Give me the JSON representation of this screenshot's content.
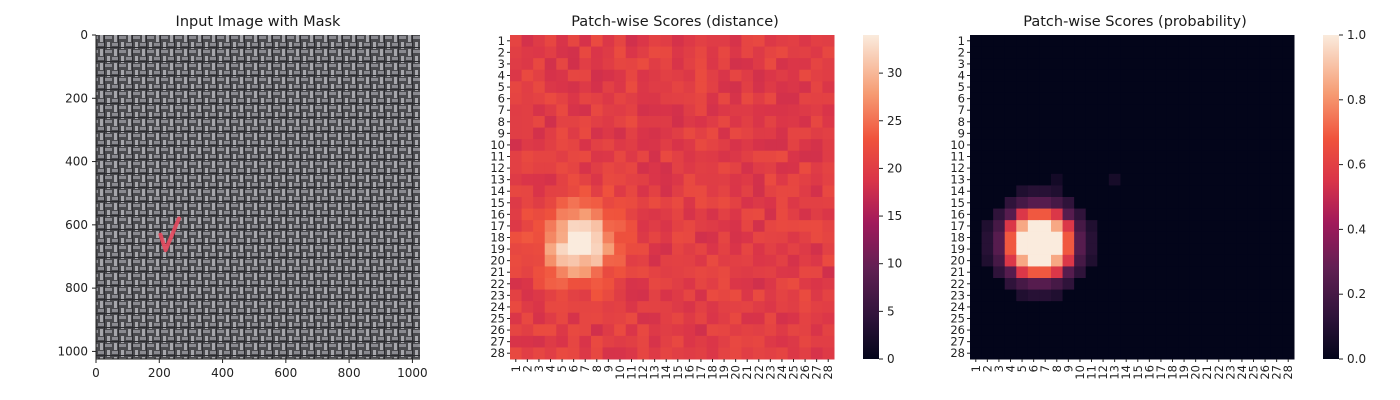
{
  "chart_data": [
    {
      "type": "image",
      "title": "Input Image with Mask",
      "xlim": [
        0,
        1024
      ],
      "ylim": [
        1024,
        0
      ],
      "x_ticks": [
        "0",
        "200",
        "400",
        "600",
        "800",
        "1000"
      ],
      "y_ticks": [
        "0",
        "200",
        "400",
        "600",
        "800",
        "1000"
      ],
      "mask_color": "#e84a5f",
      "mask_region": [
        [
          210,
          650
        ],
        [
          262,
          580
        ],
        [
          220,
          680
        ]
      ]
    },
    {
      "type": "heatmap",
      "title": "Patch-wise Scores (distance)",
      "rows": 28,
      "cols": 28,
      "row_labels": [
        "1",
        "2",
        "3",
        "4",
        "5",
        "6",
        "7",
        "8",
        "9",
        "10",
        "11",
        "12",
        "13",
        "14",
        "15",
        "16",
        "17",
        "18",
        "19",
        "20",
        "21",
        "22",
        "23",
        "24",
        "25",
        "26",
        "27",
        "28"
      ],
      "col_labels": [
        "1",
        "2",
        "3",
        "4",
        "5",
        "6",
        "7",
        "8",
        "9",
        "10",
        "11",
        "12",
        "13",
        "14",
        "15",
        "16",
        "17",
        "18",
        "19",
        "20",
        "21",
        "22",
        "23",
        "24",
        "25",
        "26",
        "27",
        "28"
      ],
      "colorbar": {
        "min": 0,
        "max": 34,
        "ticks": [
          "0",
          "5",
          "10",
          "15",
          "20",
          "25",
          "30"
        ]
      },
      "base": 20,
      "hotspot": {
        "row": 18.5,
        "col": 6.5,
        "peak": 34,
        "spread": 2.2
      }
    },
    {
      "type": "heatmap",
      "title": "Patch-wise Scores (probability)",
      "rows": 28,
      "cols": 28,
      "row_labels": [
        "1",
        "2",
        "3",
        "4",
        "5",
        "6",
        "7",
        "8",
        "9",
        "10",
        "11",
        "12",
        "13",
        "14",
        "15",
        "16",
        "17",
        "18",
        "19",
        "20",
        "21",
        "22",
        "23",
        "24",
        "25",
        "26",
        "27",
        "28"
      ],
      "col_labels": [
        "1",
        "2",
        "3",
        "4",
        "5",
        "6",
        "7",
        "8",
        "9",
        "10",
        "11",
        "12",
        "13",
        "14",
        "15",
        "16",
        "17",
        "18",
        "19",
        "20",
        "21",
        "22",
        "23",
        "24",
        "25",
        "26",
        "27",
        "28"
      ],
      "colorbar": {
        "min": 0.0,
        "max": 1.0,
        "ticks": [
          "0.0",
          "0.2",
          "0.4",
          "0.6",
          "0.8",
          "1.0"
        ]
      },
      "base": 0,
      "hotspot": {
        "row": 18.5,
        "col": 6.5,
        "peak": 1.0,
        "spread": 2.2
      }
    }
  ]
}
